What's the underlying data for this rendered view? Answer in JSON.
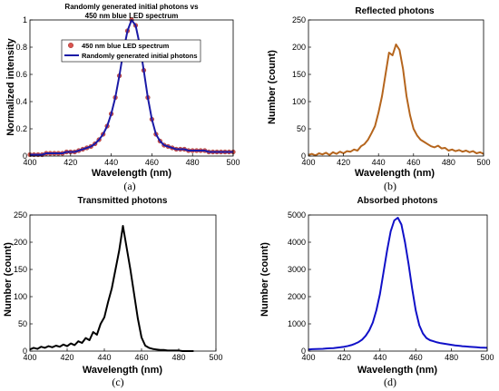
{
  "chart_data": [
    {
      "id": "a",
      "type": "line",
      "title": "Randomly generated initial photons vs\n450 nm blue LED spectrum",
      "xlabel": "Wavelength (nm)",
      "ylabel": "Normalized intensity",
      "caption": "(a)",
      "xlim": [
        400,
        500
      ],
      "ylim": [
        0,
        1
      ],
      "xticks": [
        400,
        420,
        440,
        460,
        480,
        500
      ],
      "yticks": [
        0,
        0.2,
        0.4,
        0.6,
        0.8,
        1
      ],
      "ytick_labels": [
        "0",
        "0.2",
        "0.4",
        "0.6",
        "0.8",
        "1"
      ],
      "legend": {
        "position": "top-right",
        "entries": [
          "450 nm blue LED spectrum",
          "Randomly generated initial photons"
        ]
      },
      "series": [
        {
          "name": "450 nm blue LED spectrum",
          "style": "markers",
          "color": "#d9534f",
          "x": [
            400,
            402,
            404,
            406,
            408,
            410,
            412,
            414,
            416,
            418,
            420,
            422,
            424,
            426,
            428,
            430,
            432,
            434,
            436,
            438,
            440,
            442,
            444,
            446,
            448,
            450,
            452,
            454,
            456,
            458,
            460,
            462,
            464,
            466,
            468,
            470,
            472,
            474,
            476,
            478,
            480,
            482,
            484,
            486,
            488,
            490,
            492,
            494,
            496,
            498,
            500
          ],
          "y": [
            0.01,
            0.01,
            0.01,
            0.01,
            0.02,
            0.02,
            0.02,
            0.02,
            0.02,
            0.03,
            0.03,
            0.03,
            0.04,
            0.05,
            0.06,
            0.07,
            0.09,
            0.12,
            0.16,
            0.22,
            0.31,
            0.43,
            0.59,
            0.77,
            0.92,
            1.0,
            0.96,
            0.82,
            0.63,
            0.43,
            0.27,
            0.16,
            0.11,
            0.08,
            0.07,
            0.06,
            0.05,
            0.05,
            0.05,
            0.04,
            0.04,
            0.04,
            0.04,
            0.04,
            0.03,
            0.03,
            0.03,
            0.03,
            0.03,
            0.03,
            0.03
          ]
        },
        {
          "name": "Randomly generated initial photons",
          "style": "line",
          "color": "#1a1aa6",
          "x": [
            400,
            402,
            404,
            406,
            408,
            410,
            412,
            414,
            416,
            418,
            420,
            422,
            424,
            426,
            428,
            430,
            432,
            434,
            436,
            438,
            440,
            442,
            444,
            446,
            448,
            450,
            452,
            454,
            456,
            458,
            460,
            462,
            464,
            466,
            468,
            470,
            472,
            474,
            476,
            478,
            480,
            482,
            484,
            486,
            488,
            490,
            492,
            494,
            496,
            498,
            500
          ],
          "y": [
            0.01,
            0.01,
            0.01,
            0.01,
            0.02,
            0.02,
            0.02,
            0.02,
            0.02,
            0.03,
            0.03,
            0.03,
            0.04,
            0.05,
            0.06,
            0.07,
            0.09,
            0.12,
            0.16,
            0.22,
            0.31,
            0.43,
            0.59,
            0.77,
            0.92,
            1.0,
            0.96,
            0.82,
            0.63,
            0.43,
            0.27,
            0.16,
            0.11,
            0.08,
            0.07,
            0.06,
            0.05,
            0.05,
            0.05,
            0.04,
            0.04,
            0.04,
            0.04,
            0.04,
            0.03,
            0.03,
            0.03,
            0.03,
            0.03,
            0.03,
            0.03
          ]
        }
      ]
    },
    {
      "id": "b",
      "type": "line",
      "title": "Reflected photons",
      "xlabel": "Wavelength (nm)",
      "ylabel": "Number (count)",
      "caption": "(b)",
      "xlim": [
        400,
        500
      ],
      "ylim": [
        0,
        250
      ],
      "xticks": [
        400,
        420,
        440,
        460,
        480,
        500
      ],
      "yticks": [
        0,
        50,
        100,
        150,
        200,
        250
      ],
      "ytick_labels": [
        "0",
        "50",
        "100",
        "150",
        "200",
        "250"
      ],
      "series": [
        {
          "color": "#b5651d",
          "x": [
            400,
            402,
            404,
            406,
            408,
            410,
            412,
            414,
            416,
            418,
            420,
            422,
            424,
            426,
            428,
            430,
            432,
            434,
            436,
            438,
            440,
            442,
            444,
            446,
            448,
            450,
            452,
            454,
            456,
            458,
            460,
            462,
            464,
            466,
            468,
            470,
            472,
            474,
            476,
            478,
            480,
            482,
            484,
            486,
            488,
            490,
            492,
            494,
            496,
            498,
            500
          ],
          "y": [
            2,
            4,
            1,
            5,
            3,
            6,
            2,
            7,
            4,
            8,
            5,
            9,
            8,
            12,
            10,
            18,
            22,
            30,
            42,
            55,
            80,
            110,
            150,
            190,
            185,
            205,
            195,
            160,
            110,
            75,
            50,
            38,
            30,
            26,
            22,
            18,
            16,
            19,
            14,
            15,
            10,
            12,
            9,
            11,
            8,
            10,
            7,
            9,
            5,
            7,
            4
          ]
        }
      ]
    },
    {
      "id": "c",
      "type": "line",
      "title": "Transmitted photons",
      "xlabel": "Wavelength (nm)",
      "ylabel": "Number (count)",
      "caption": "(c)",
      "xlim": [
        400,
        500
      ],
      "ylim": [
        0,
        250
      ],
      "xticks": [
        400,
        420,
        440,
        460,
        480,
        500
      ],
      "yticks": [
        0,
        50,
        100,
        150,
        200,
        250
      ],
      "ytick_labels": [
        "0",
        "50",
        "100",
        "150",
        "200",
        "250"
      ],
      "series": [
        {
          "color": "#000000",
          "x": [
            400,
            402,
            404,
            406,
            408,
            410,
            412,
            414,
            416,
            418,
            420,
            422,
            424,
            426,
            428,
            430,
            432,
            434,
            436,
            438,
            440,
            442,
            444,
            446,
            448,
            450,
            452,
            454,
            456,
            458,
            460,
            462,
            464,
            466,
            468,
            470,
            472,
            474,
            476,
            478,
            480,
            482,
            484,
            486,
            488
          ],
          "y": [
            3,
            6,
            4,
            8,
            6,
            9,
            7,
            10,
            8,
            12,
            9,
            14,
            11,
            18,
            15,
            24,
            20,
            35,
            30,
            50,
            62,
            90,
            115,
            150,
            185,
            230,
            190,
            150,
            105,
            60,
            25,
            10,
            6,
            4,
            3,
            2,
            2,
            1,
            1,
            1,
            1,
            0,
            0,
            0,
            0
          ]
        }
      ]
    },
    {
      "id": "d",
      "type": "line",
      "title": "Absorbed photons",
      "xlabel": "Wavelength (nm)",
      "ylabel": "Number (count)",
      "caption": "(d)",
      "xlim": [
        400,
        500
      ],
      "ylim": [
        0,
        5000
      ],
      "xticks": [
        400,
        420,
        440,
        460,
        480,
        500
      ],
      "yticks": [
        0,
        1000,
        2000,
        3000,
        4000,
        5000
      ],
      "ytick_labels": [
        "0",
        "1000",
        "2000",
        "3000",
        "4000",
        "5000"
      ],
      "series": [
        {
          "color": "#1010c8",
          "x": [
            400,
            402,
            404,
            406,
            408,
            410,
            412,
            414,
            416,
            418,
            420,
            422,
            424,
            426,
            428,
            430,
            432,
            434,
            436,
            438,
            440,
            442,
            444,
            446,
            448,
            450,
            452,
            454,
            456,
            458,
            460,
            462,
            464,
            466,
            468,
            470,
            472,
            474,
            476,
            478,
            480,
            482,
            484,
            486,
            488,
            490,
            492,
            494,
            496,
            498,
            500
          ],
          "y": [
            60,
            70,
            75,
            80,
            85,
            95,
            105,
            110,
            125,
            140,
            160,
            185,
            220,
            270,
            330,
            420,
            560,
            760,
            1050,
            1500,
            2100,
            2900,
            3700,
            4400,
            4800,
            4900,
            4650,
            4000,
            3200,
            2300,
            1500,
            950,
            650,
            480,
            400,
            360,
            320,
            290,
            270,
            250,
            230,
            210,
            195,
            180,
            170,
            160,
            150,
            140,
            130,
            125,
            120
          ]
        }
      ]
    }
  ]
}
